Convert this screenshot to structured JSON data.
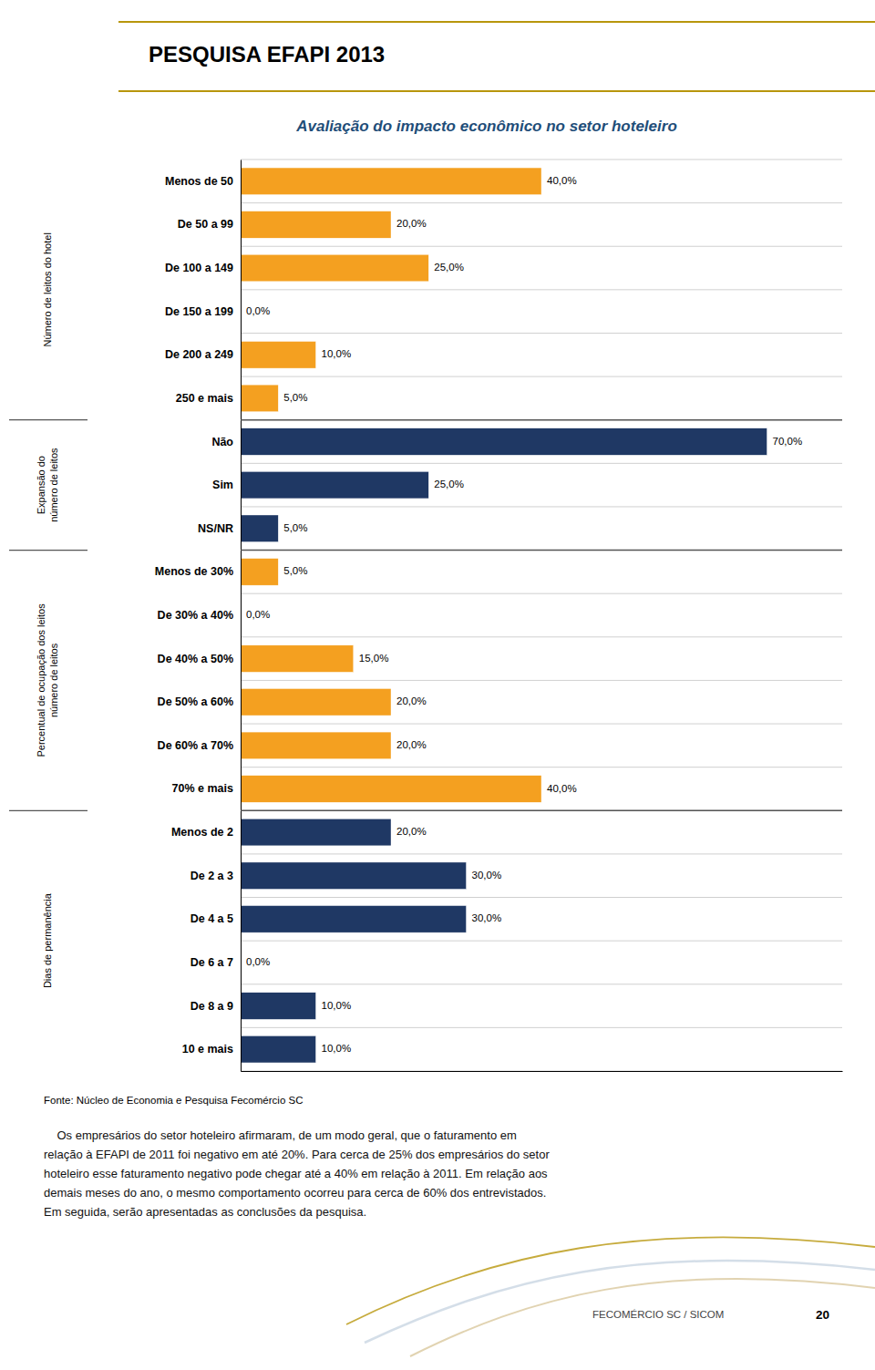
{
  "chart_data": {
    "type": "bar",
    "orientation": "horizontal",
    "title": "Avaliação do impacto econômico no setor hoteleiro",
    "categories": [
      "Menos de 50",
      "De 50 a 99",
      "De 100 a 149",
      "De 150 a 199",
      "De 200 a 249",
      "250 e mais",
      "Não",
      "Sim",
      "NS/NR",
      "Menos de 30%",
      "De 30% a 40%",
      "De 40% a 50%",
      "De 50% a 60%",
      "De 60% a 70%",
      "70% e mais",
      "Menos de 2",
      "De 2 a 3",
      "De 4 a 5",
      "De 6 a 7",
      "De 8 a 9",
      "10 e mais"
    ],
    "values": [
      40.0,
      20.0,
      25.0,
      0.0,
      10.0,
      5.0,
      70.0,
      25.0,
      5.0,
      5.0,
      0.0,
      15.0,
      20.0,
      20.0,
      40.0,
      20.0,
      30.0,
      30.0,
      0.0,
      10.0,
      10.0
    ],
    "value_labels": [
      "40,0%",
      "20,0%",
      "25,0%",
      "0,0%",
      "10,0%",
      "5,0%",
      "70,0%",
      "25,0%",
      "5,0%",
      "5,0%",
      "0,0%",
      "15,0%",
      "20,0%",
      "20,0%",
      "40,0%",
      "20,0%",
      "30,0%",
      "30,0%",
      "0,0%",
      "10,0%",
      "10,0%"
    ],
    "colors": [
      "#F4A020",
      "#F4A020",
      "#F4A020",
      "#F4A020",
      "#F4A020",
      "#F4A020",
      "#1F3864",
      "#1F3864",
      "#1F3864",
      "#F4A020",
      "#F4A020",
      "#F4A020",
      "#F4A020",
      "#F4A020",
      "#F4A020",
      "#1F3864",
      "#1F3864",
      "#1F3864",
      "#1F3864",
      "#1F3864",
      "#1F3864"
    ],
    "xlim": [
      0,
      80
    ],
    "data_labels": true,
    "tick_labels": "y",
    "grid": true,
    "annotations": [
      {
        "text": "Número de leitos do hotel",
        "from": "Menos de 50",
        "to": "250 e mais"
      },
      {
        "text": "Expansão do\nnúmero de leitos",
        "from": "Não",
        "to": "NS/NR"
      },
      {
        "text": "Percentual de ocupação dos leitos\nnúmero de leitos",
        "from": "Menos de 30%",
        "to": "70% e mais"
      },
      {
        "text": "Dias de permanência",
        "from": "Menos de 2",
        "to": "10 e mais"
      }
    ]
  },
  "page": {
    "header": "PESQUISA EFAPI 2013",
    "source": "Fonte: Núcleo de Economia e Pesquisa Fecomércio SC",
    "body_lines": [
      "    Os empresários do setor hoteleiro afirmaram, de um modo geral, que o faturamento em",
      "relação à EFAPI de 2011 foi negativo em até 20%. Para cerca de 25% dos empresários do setor",
      "hoteleiro esse faturamento negativo pode chegar até a 40% em relação à 2011. Em relação aos",
      "demais meses do ano, o mesmo comportamento ocorreu para cerca de 60% dos entrevistados.",
      "Em seguida, serão apresentadas as conclusões da pesquisa."
    ],
    "publisher": "FECOMÉRCIO SC / SICOM",
    "page_number": 20
  }
}
